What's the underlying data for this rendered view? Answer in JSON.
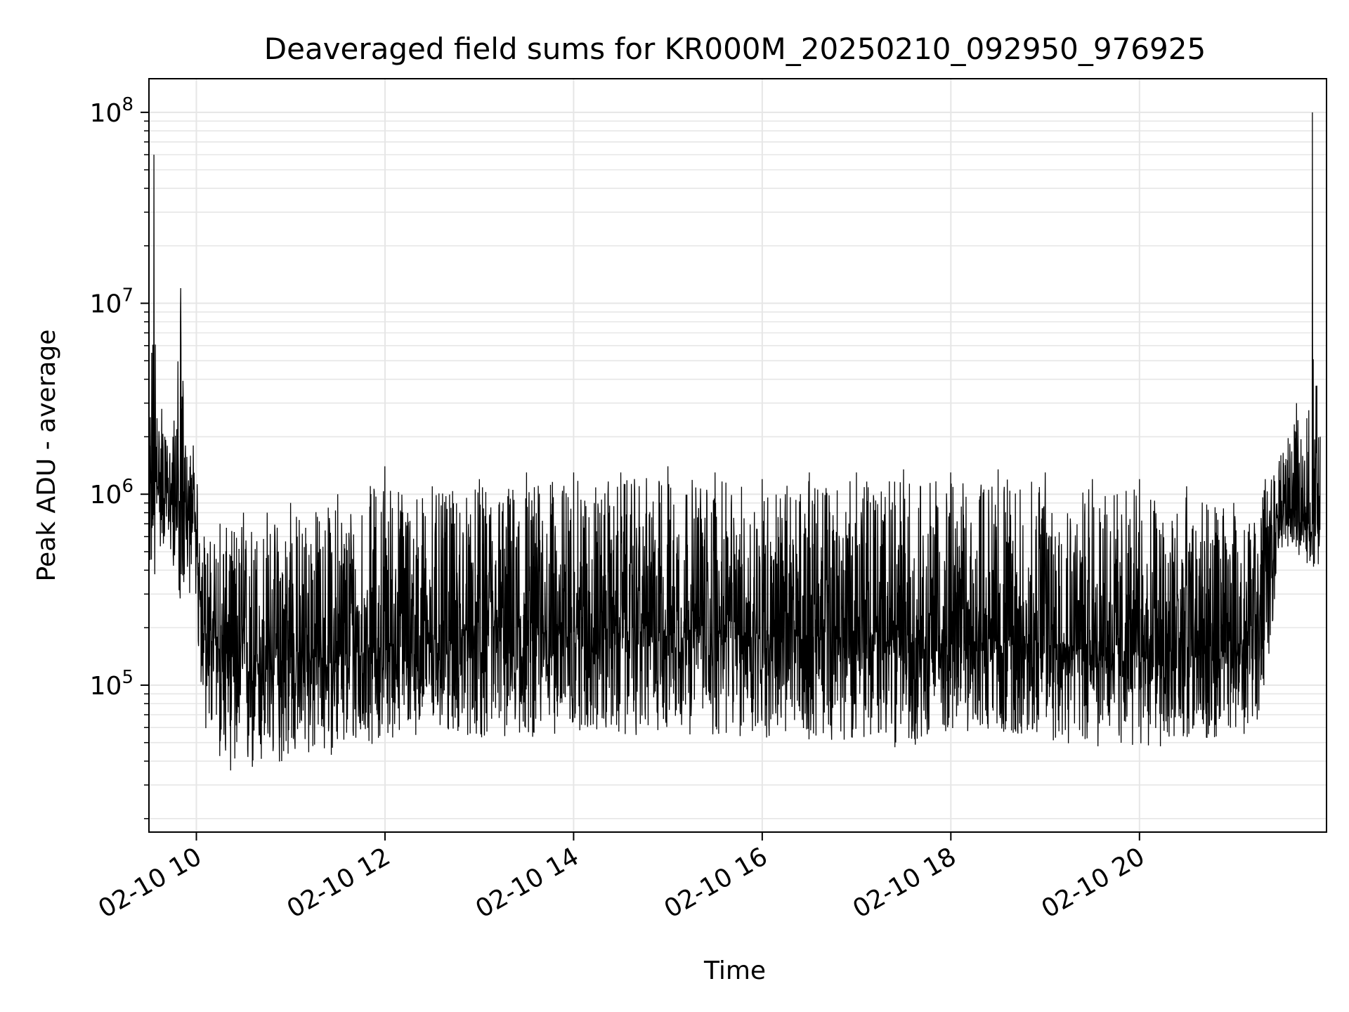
{
  "chart_data": {
    "type": "line",
    "title": "Deaveraged field sums for KR000M_20250210_092950_976925",
    "xlabel": "Time",
    "ylabel": "Peak ADU - average",
    "yscale": "log",
    "ylim": [
      17000,
      150000000
    ],
    "xlim": [
      "2025-02-10 09:29:50",
      "2025-02-10 21:59:00"
    ],
    "grid": true,
    "line_color": "#000000",
    "x_ticks": [
      {
        "value": "2025-02-10 10:00",
        "label": "02-10 10"
      },
      {
        "value": "2025-02-10 12:00",
        "label": "02-10 12"
      },
      {
        "value": "2025-02-10 14:00",
        "label": "02-10 14"
      },
      {
        "value": "2025-02-10 16:00",
        "label": "02-10 16"
      },
      {
        "value": "2025-02-10 18:00",
        "label": "02-10 18"
      },
      {
        "value": "2025-02-10 20:00",
        "label": "02-10 20"
      }
    ],
    "y_ticks": [
      {
        "value": 100000,
        "label_base": "10",
        "label_exp": "5"
      },
      {
        "value": 1000000,
        "label_base": "10",
        "label_exp": "6"
      },
      {
        "value": 10000000,
        "label_base": "10",
        "label_exp": "7"
      },
      {
        "value": 100000000,
        "label_base": "10",
        "label_exp": "8"
      }
    ],
    "series": [
      {
        "x": [
          "2025-02-10 09:30",
          "2025-02-10 09:33",
          "2025-02-10 09:35",
          "2025-02-10 09:38",
          "2025-02-10 09:40",
          "2025-02-10 09:45",
          "2025-02-10 09:50",
          "2025-02-10 09:53",
          "2025-02-10 09:58",
          "2025-02-10 10:05",
          "2025-02-10 10:15",
          "2025-02-10 10:30",
          "2025-02-10 10:45",
          "2025-02-10 11:00",
          "2025-02-10 11:30",
          "2025-02-10 12:00",
          "2025-02-10 12:30",
          "2025-02-10 13:00",
          "2025-02-10 13:30",
          "2025-02-10 14:00",
          "2025-02-10 14:30",
          "2025-02-10 15:00",
          "2025-02-10 15:30",
          "2025-02-10 16:00",
          "2025-02-10 16:30",
          "2025-02-10 17:00",
          "2025-02-10 17:30",
          "2025-02-10 18:00",
          "2025-02-10 18:30",
          "2025-02-10 19:00",
          "2025-02-10 19:30",
          "2025-02-10 20:00",
          "2025-02-10 20:30",
          "2025-02-10 21:00",
          "2025-02-10 21:10",
          "2025-02-10 21:20",
          "2025-02-10 21:30",
          "2025-02-10 21:40",
          "2025-02-10 21:45",
          "2025-02-10 21:50",
          "2025-02-10 21:55"
        ],
        "min": [
          400000,
          210000,
          500000,
          450000,
          500000,
          400000,
          220000,
          300000,
          250000,
          50000,
          35000,
          25000,
          30000,
          35000,
          38000,
          45000,
          50000,
          45000,
          45000,
          50000,
          45000,
          50000,
          45000,
          45000,
          45000,
          45000,
          40000,
          50000,
          50000,
          45000,
          40000,
          40000,
          45000,
          45000,
          40000,
          80000,
          500000,
          450000,
          400000,
          400000,
          350000
        ],
        "max": [
          1500000,
          60000000,
          2500000,
          2800000,
          2000000,
          2000000,
          12000000,
          1800000,
          1800000,
          600000,
          700000,
          800000,
          800000,
          900000,
          1000000,
          1400000,
          1100000,
          1200000,
          1300000,
          1300000,
          1300000,
          1400000,
          1300000,
          1200000,
          1300000,
          1300000,
          1350000,
          1300000,
          1350000,
          1300000,
          1200000,
          1200000,
          1100000,
          900000,
          700000,
          1200000,
          1600000,
          3000000,
          1500000,
          100000000,
          2000000
        ],
        "typical": [
          900000,
          1000000,
          1100000,
          1100000,
          1000000,
          900000,
          900000,
          800000,
          700000,
          200000,
          150000,
          130000,
          130000,
          140000,
          140000,
          160000,
          170000,
          180000,
          190000,
          200000,
          200000,
          200000,
          190000,
          180000,
          180000,
          180000,
          170000,
          170000,
          170000,
          170000,
          160000,
          150000,
          150000,
          140000,
          200000,
          400000,
          800000,
          750000,
          700000,
          700000,
          650000
        ]
      }
    ]
  }
}
